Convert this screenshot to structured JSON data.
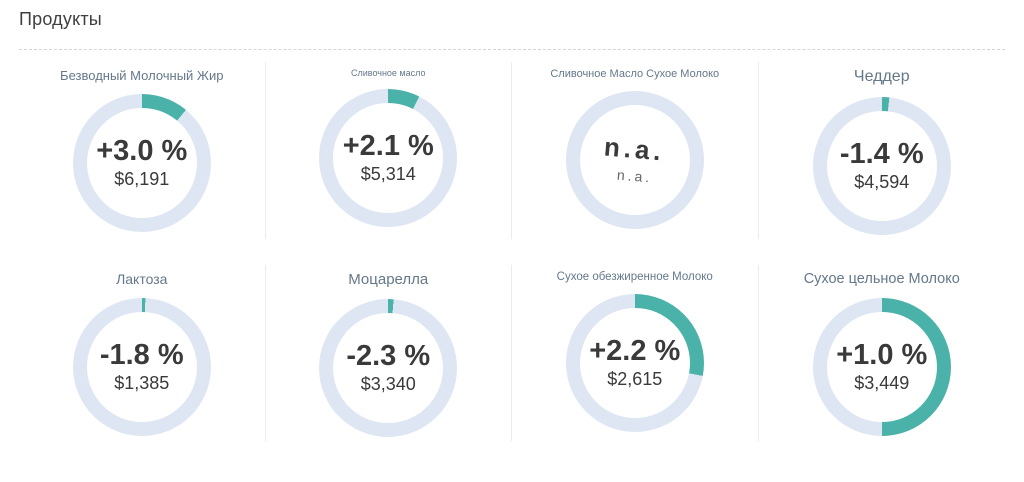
{
  "page": {
    "title": "Продукты"
  },
  "colors": {
    "accent_teal": "#4bb2aa",
    "ring_base": "#dde6f2",
    "title_color": "#64788a",
    "text_dark": "#3a3a3a",
    "separator": "#d6d6d6"
  },
  "chart_data": {
    "type": "pie",
    "variant": "donut-kpi-grid",
    "title": "Продукты",
    "legend_position": "none",
    "grid": "2x4",
    "items": [
      {
        "title": "Безводный Молочный Жир",
        "change": "+3.0 %",
        "change_pct": 3.0,
        "value": "$6,191",
        "value_usd": 6191,
        "ring_fraction": 0.11,
        "na": false
      },
      {
        "title": "Сливочное масло",
        "change": "+2.1 %",
        "change_pct": 2.1,
        "value": "$5,314",
        "value_usd": 5314,
        "ring_fraction": 0.075,
        "na": false
      },
      {
        "title": "Сливочное Масло Сухое Молоко",
        "change": "n.a.",
        "change_pct": null,
        "value": "n.a.",
        "value_usd": null,
        "ring_fraction": 0,
        "na": true
      },
      {
        "title": "Чеддер",
        "change": "-1.4 %",
        "change_pct": -1.4,
        "value": "$4,594",
        "value_usd": 4594,
        "ring_fraction": 0.017,
        "na": false
      },
      {
        "title": "Лактоза",
        "change": "-1.8 %",
        "change_pct": -1.8,
        "value": "$1,385",
        "value_usd": 1385,
        "ring_fraction": 0.008,
        "na": false
      },
      {
        "title": "Моцарелла",
        "change": "-2.3 %",
        "change_pct": -2.3,
        "value": "$3,340",
        "value_usd": 3340,
        "ring_fraction": 0.013,
        "na": false
      },
      {
        "title": "Сухое обезжиренное Молоко",
        "change": "+2.2 %",
        "change_pct": 2.2,
        "value": "$2,615",
        "value_usd": 2615,
        "ring_fraction": 0.28,
        "na": false
      },
      {
        "title": "Сухое цельное Молоко",
        "change": "+1.0 %",
        "change_pct": 1.0,
        "value": "$3,449",
        "value_usd": 3449,
        "ring_fraction": 0.5,
        "na": false
      }
    ]
  }
}
